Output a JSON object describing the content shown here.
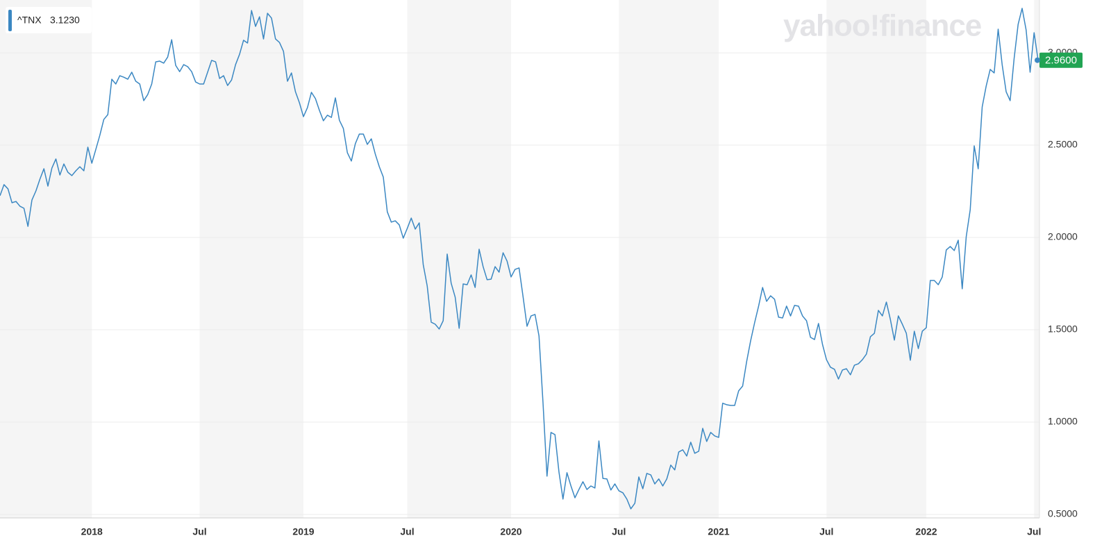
{
  "chart_data": {
    "type": "line",
    "watermark": "yahoo!finance",
    "legend_symbol": "^TNX",
    "legend_price": {
      "value": 3.123,
      "label": "3.1230"
    },
    "current_price": {
      "value": 2.96,
      "label": "2.9600"
    },
    "current_price_color": "#21a453",
    "band_color": "#f5f5f5",
    "grid": true,
    "ylim": [
      0.481,
      3.286
    ],
    "yticks": [
      {
        "value": 0.5,
        "label": "0.5000"
      },
      {
        "value": 1.0,
        "label": "1.0000"
      },
      {
        "value": 1.5,
        "label": "1.5000"
      },
      {
        "value": 2.0,
        "label": "2.0000"
      },
      {
        "value": 2.5,
        "label": "2.5000"
      },
      {
        "value": 3.0,
        "label": "3.0000"
      }
    ],
    "categories": [
      null,
      null,
      null,
      null,
      null,
      null,
      null,
      null,
      null,
      null,
      null,
      null,
      null,
      null,
      null,
      null,
      null,
      null,
      null,
      null,
      null,
      null,
      null,
      "2018",
      null,
      null,
      null,
      null,
      null,
      null,
      null,
      null,
      null,
      null,
      null,
      null,
      null,
      null,
      null,
      null,
      null,
      null,
      null,
      null,
      null,
      null,
      null,
      null,
      null,
      null,
      "Jul",
      null,
      null,
      null,
      null,
      null,
      null,
      null,
      null,
      null,
      null,
      null,
      null,
      null,
      null,
      null,
      null,
      null,
      null,
      null,
      null,
      null,
      null,
      null,
      null,
      null,
      "2019",
      null,
      null,
      null,
      null,
      null,
      null,
      null,
      null,
      null,
      null,
      null,
      null,
      null,
      null,
      null,
      null,
      null,
      null,
      null,
      null,
      null,
      null,
      null,
      null,
      null,
      "Jul",
      null,
      null,
      null,
      null,
      null,
      null,
      null,
      null,
      null,
      null,
      null,
      null,
      null,
      null,
      null,
      null,
      null,
      null,
      null,
      null,
      null,
      null,
      null,
      null,
      null,
      "2020",
      null,
      null,
      null,
      null,
      null,
      null,
      null,
      null,
      null,
      null,
      null,
      null,
      null,
      null,
      null,
      null,
      null,
      null,
      null,
      null,
      null,
      null,
      null,
      null,
      null,
      null,
      "Jul",
      null,
      null,
      null,
      null,
      null,
      null,
      null,
      null,
      null,
      null,
      null,
      null,
      null,
      null,
      null,
      null,
      null,
      null,
      null,
      null,
      null,
      null,
      null,
      null,
      "2021",
      null,
      null,
      null,
      null,
      null,
      null,
      null,
      null,
      null,
      null,
      null,
      null,
      null,
      null,
      null,
      null,
      null,
      null,
      null,
      null,
      null,
      null,
      null,
      null,
      null,
      null,
      "Jul",
      null,
      null,
      null,
      null,
      null,
      null,
      null,
      null,
      null,
      null,
      null,
      null,
      null,
      null,
      null,
      null,
      null,
      null,
      null,
      null,
      null,
      null,
      null,
      null,
      "2022",
      null,
      null,
      null,
      null,
      null,
      null,
      null,
      null,
      null,
      null,
      null,
      null,
      null,
      null,
      null,
      null,
      null,
      null,
      null,
      null,
      null,
      null,
      null,
      null,
      null,
      null,
      "Jul",
      null
    ],
    "series": [
      {
        "name": "^TNX",
        "color": "#3a87c2",
        "values": [
          2.226,
          2.286,
          2.263,
          2.188,
          2.195,
          2.169,
          2.158,
          2.06,
          2.203,
          2.252,
          2.316,
          2.372,
          2.278,
          2.376,
          2.425,
          2.338,
          2.398,
          2.353,
          2.335,
          2.361,
          2.383,
          2.361,
          2.489,
          2.402,
          2.477,
          2.553,
          2.639,
          2.665,
          2.857,
          2.831,
          2.876,
          2.868,
          2.857,
          2.895,
          2.846,
          2.831,
          2.741,
          2.774,
          2.831,
          2.951,
          2.955,
          2.944,
          2.977,
          3.071,
          2.932,
          2.898,
          2.936,
          2.925,
          2.898,
          2.842,
          2.831,
          2.831,
          2.895,
          2.959,
          2.951,
          2.861,
          2.876,
          2.823,
          2.853,
          2.936,
          2.992,
          3.068,
          3.053,
          3.229,
          3.143,
          3.195,
          3.075,
          3.214,
          3.188,
          3.075,
          3.056,
          3.008,
          2.846,
          2.891,
          2.789,
          2.729,
          2.654,
          2.703,
          2.786,
          2.752,
          2.688,
          2.632,
          2.662,
          2.65,
          2.756,
          2.635,
          2.59,
          2.459,
          2.414,
          2.508,
          2.56,
          2.56,
          2.504,
          2.534,
          2.451,
          2.383,
          2.327,
          2.139,
          2.083,
          2.09,
          2.068,
          1.996,
          2.049,
          2.105,
          2.045,
          2.079,
          1.853,
          1.737,
          1.541,
          1.53,
          1.504,
          1.549,
          1.91,
          1.752,
          1.677,
          1.508,
          1.748,
          1.744,
          1.797,
          1.729,
          1.936,
          1.842,
          1.771,
          1.774,
          1.842,
          1.812,
          1.917,
          1.872,
          1.786,
          1.827,
          1.835,
          1.68,
          1.519,
          1.575,
          1.583,
          1.466,
          1.105,
          0.707,
          0.944,
          0.932,
          0.729,
          0.583,
          0.726,
          0.654,
          0.59,
          0.635,
          0.677,
          0.635,
          0.654,
          0.643,
          0.898,
          0.695,
          0.692,
          0.632,
          0.665,
          0.628,
          0.617,
          0.583,
          0.53,
          0.56,
          0.703,
          0.639,
          0.722,
          0.714,
          0.665,
          0.692,
          0.654,
          0.692,
          0.767,
          0.741,
          0.838,
          0.85,
          0.816,
          0.891,
          0.831,
          0.842,
          0.966,
          0.895,
          0.944,
          0.925,
          0.917,
          1.102,
          1.094,
          1.09,
          1.09,
          1.169,
          1.195,
          1.327,
          1.44,
          1.538,
          1.628,
          1.729,
          1.654,
          1.684,
          1.665,
          1.568,
          1.564,
          1.628,
          1.575,
          1.632,
          1.628,
          1.575,
          1.549,
          1.459,
          1.447,
          1.534,
          1.421,
          1.338,
          1.297,
          1.286,
          1.233,
          1.282,
          1.289,
          1.256,
          1.308,
          1.316,
          1.338,
          1.368,
          1.462,
          1.481,
          1.605,
          1.575,
          1.65,
          1.556,
          1.444,
          1.575,
          1.53,
          1.481,
          1.335,
          1.492,
          1.398,
          1.492,
          1.511,
          1.767,
          1.767,
          1.744,
          1.786,
          1.932,
          1.951,
          1.929,
          1.985,
          1.722,
          2.004,
          2.15,
          2.496,
          2.372,
          2.707,
          2.82,
          2.91,
          2.891,
          3.128,
          2.936,
          2.789,
          2.741,
          2.97,
          3.154,
          3.241,
          3.124,
          2.895,
          3.109,
          2.96
        ]
      }
    ]
  }
}
